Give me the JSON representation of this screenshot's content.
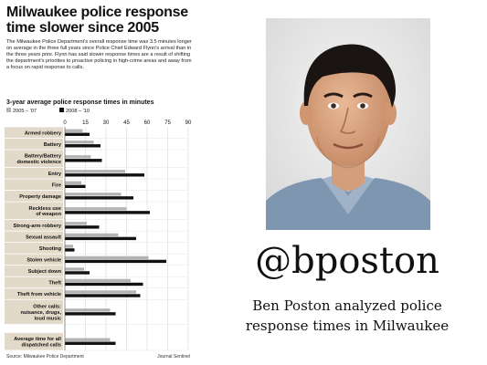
{
  "graphic": {
    "headline": "Milwaukee police response time slower since 2005",
    "intro": "The Milwaukee Police Department's overall response time was 3.5 minutes longer on average in the three full years since Police Chief Edward Flynn's arrival than in the three years prior. Flynn has said slower response times are a result of shifting the department's priorities to proactive policing in high-crime areas and away from a focus on rapid response to calls.",
    "subhead": "3-year average police response times in minutes",
    "source": "Source: Milwaukee Police Department",
    "credit": "Journal Sentinel"
  },
  "chart_data": {
    "type": "bar",
    "orientation": "horizontal",
    "title": "3-year average police response times in minutes",
    "xlim": [
      0,
      90
    ],
    "xticks": [
      0,
      15,
      30,
      45,
      60,
      75,
      90
    ],
    "grid": true,
    "legend_position": "top-left",
    "categories": [
      "Armed robbery",
      "Battery",
      "Battery/Battery domestic violence",
      "Entry",
      "Fire",
      "Property damage",
      "Reckless use of weapon",
      "Strong-arm robbery",
      "Sexual assault",
      "Shooting",
      "Stolen vehicle",
      "Subject down",
      "Theft",
      "Theft from vehicle",
      "Other calls: nuisance, drugs, loud music",
      "Average time for all dispatched calls"
    ],
    "category_lines": [
      [
        "Armed robbery"
      ],
      [
        "Battery"
      ],
      [
        "Battery/Battery",
        "domestic violence"
      ],
      [
        "Entry"
      ],
      [
        "Fire"
      ],
      [
        "Property damage"
      ],
      [
        "Reckless use",
        "of weapon"
      ],
      [
        "Strong-arm robbery"
      ],
      [
        "Sexual assault"
      ],
      [
        "Shooting"
      ],
      [
        "Stolen vehicle"
      ],
      [
        "Subject down"
      ],
      [
        "Theft"
      ],
      [
        "Theft from vehicle"
      ],
      [
        "Other calls:",
        "nuisance, drugs,",
        "loud music"
      ],
      [
        "Average time for all",
        "dispatched calls"
      ]
    ],
    "series": [
      {
        "name": "2005 – '07",
        "color": "#b3b3b3",
        "values": [
          13,
          21,
          19,
          44,
          12,
          41,
          45,
          16,
          39,
          6,
          61,
          14,
          48,
          52,
          33,
          33
        ]
      },
      {
        "name": "2008 – '10",
        "color": "#111111",
        "values": [
          18,
          26,
          27,
          58,
          15,
          50,
          62,
          25,
          52,
          7,
          74,
          18,
          57,
          55,
          37,
          37
        ]
      }
    ],
    "colors": {
      "label_bg": "#e2d9c8",
      "grid": "#cfcfcf",
      "row_rule": "#ffffff"
    }
  },
  "handle": "@bposton",
  "caption": "Ben Poston analyzed police response times in Milwaukee"
}
